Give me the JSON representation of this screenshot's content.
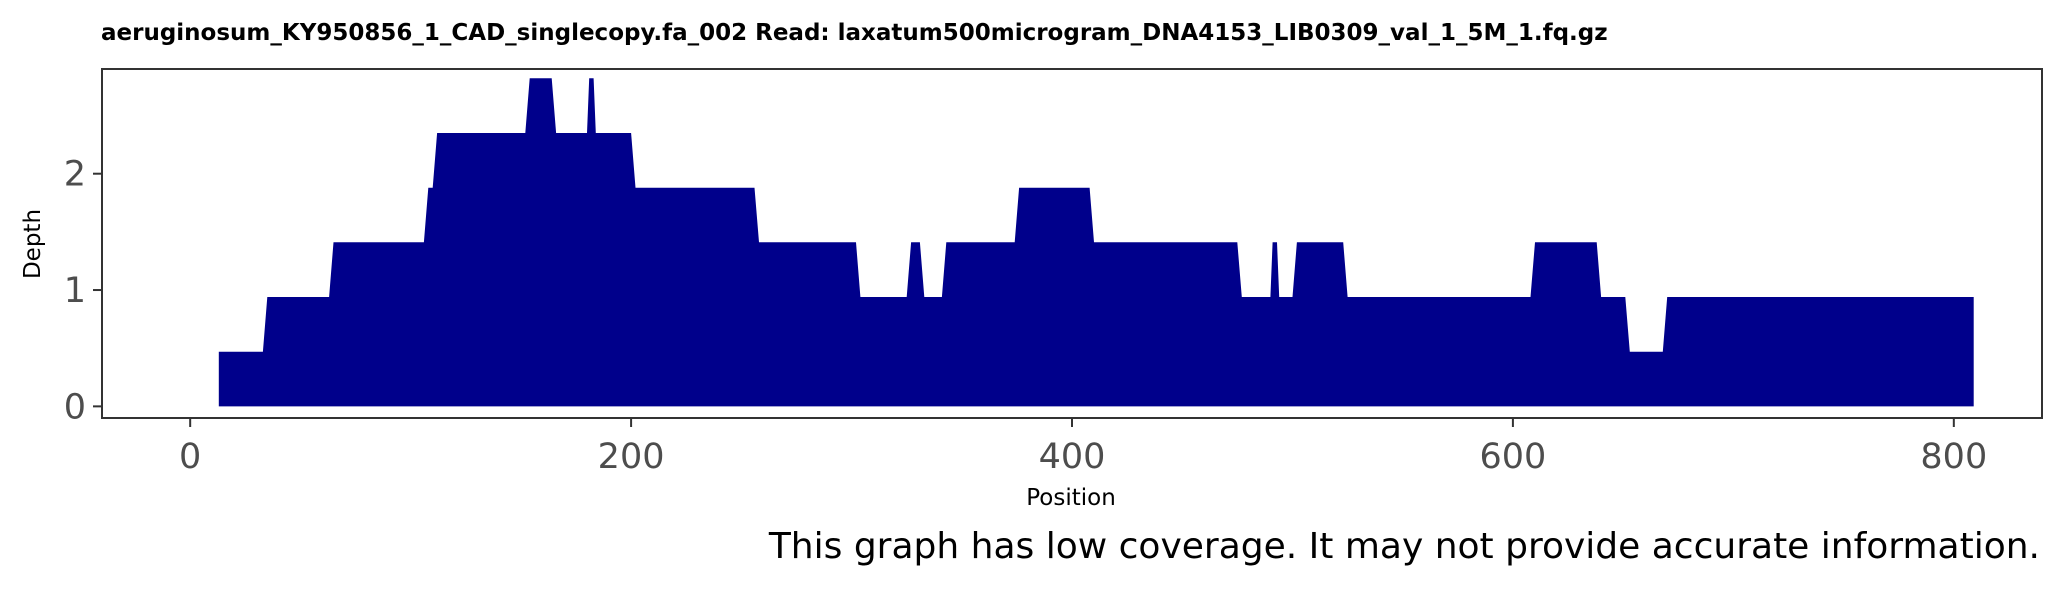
{
  "chart_data": {
    "type": "area",
    "title": "aeruginosum_KY950856_1_CAD_singlecopy.fa_002   Read: laxatum500microgram_DNA4153_LIB0309_val_1_5M_1.fq.gz",
    "xlabel": "Position",
    "ylabel": "Depth",
    "xlim": [
      -40,
      840
    ],
    "ylim": [
      -0.1,
      2.9
    ],
    "x_ticks": [
      0,
      200,
      400,
      600,
      800
    ],
    "y_ticks": [
      0,
      1,
      2
    ],
    "grid": false,
    "fill_color": "#00008B",
    "series": [
      {
        "x": [
          13,
          13,
          33,
          35,
          63,
          65,
          106,
          108,
          110,
          112,
          152,
          154,
          164,
          166,
          180,
          181,
          183,
          184,
          200,
          202,
          256,
          258,
          302,
          304,
          325,
          327,
          331,
          333,
          341,
          343,
          374,
          376,
          408,
          410,
          475,
          477,
          490,
          491,
          493,
          494,
          500,
          502,
          523,
          525,
          608,
          610,
          638,
          640,
          646,
          648,
          651,
          653,
          668,
          670,
          809
        ],
        "y": [
          0,
          0.47,
          0.47,
          0.94,
          0.94,
          1.41,
          1.41,
          1.88,
          1.88,
          2.35,
          2.35,
          2.82,
          2.82,
          2.35,
          2.35,
          2.82,
          2.82,
          2.35,
          2.35,
          1.88,
          1.88,
          1.41,
          1.41,
          0.94,
          0.94,
          1.41,
          1.41,
          0.94,
          0.94,
          1.41,
          1.41,
          1.88,
          1.88,
          1.41,
          1.41,
          0.94,
          0.94,
          1.41,
          1.41,
          0.94,
          0.94,
          1.41,
          1.41,
          0.94,
          0.94,
          1.41,
          1.41,
          0.94,
          0.94,
          0.94,
          0.94,
          0.47,
          0.47,
          0.94,
          0.94
        ]
      }
    ]
  },
  "note": "This graph has low coverage. It may not provide accurate information."
}
